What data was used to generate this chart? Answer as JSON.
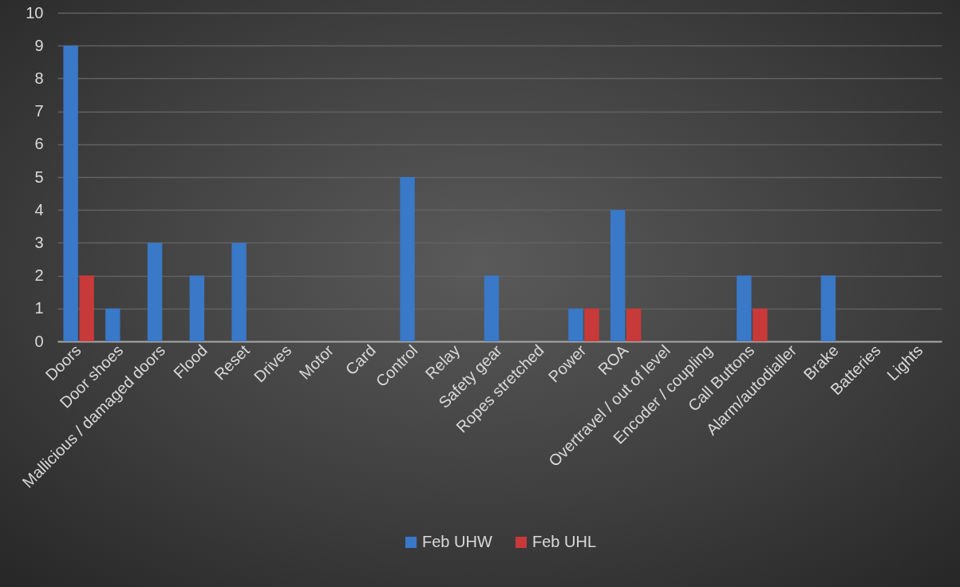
{
  "chart_data": {
    "type": "bar",
    "categories": [
      "Doors",
      "Door shoes",
      "Mallicious  / damaged doors",
      "Flood",
      "Reset",
      "Drives",
      "Motor",
      "Card",
      "Control",
      "Relay",
      "Safety gear",
      "Ropes stretched",
      "Power",
      "ROA",
      "Overtravel / out of level",
      "Encoder / coupling",
      "Call Buttons",
      "Alarm/autodialler",
      "Brake",
      "Batteries",
      "Lights"
    ],
    "series": [
      {
        "name": "Feb UHW",
        "color": "#3a78c8",
        "values": [
          9,
          1,
          3,
          2,
          3,
          0,
          0,
          0,
          5,
          0,
          2,
          0,
          1,
          4,
          0,
          0,
          2,
          0,
          2,
          0,
          0
        ]
      },
      {
        "name": "Feb UHL",
        "color": "#c83a3a",
        "values": [
          2,
          0,
          0,
          0,
          0,
          0,
          0,
          0,
          0,
          0,
          0,
          0,
          1,
          1,
          0,
          0,
          1,
          0,
          0,
          0,
          0
        ]
      }
    ],
    "ylim": [
      0,
      10
    ],
    "yticks": [
      0,
      1,
      2,
      3,
      4,
      5,
      6,
      7,
      8,
      9,
      10
    ],
    "grid": "y",
    "legend": "bottom"
  }
}
